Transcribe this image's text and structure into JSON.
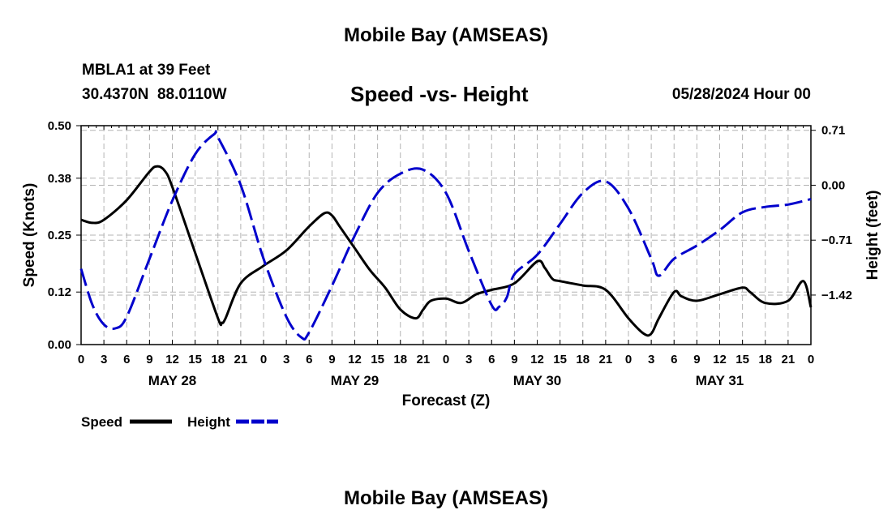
{
  "header": {
    "title": "Mobile Bay (AMSEAS)",
    "station": "MBLA1 at 39 Feet",
    "coords": "30.4370N  88.0110W",
    "subtitle": "Speed -vs- Height",
    "datetime": "05/28/2024 Hour 00"
  },
  "footer": {
    "title": "Mobile Bay (AMSEAS)"
  },
  "legend": {
    "speed": "Speed",
    "height": "Height"
  },
  "chart_data": {
    "type": "line",
    "xlabel": "Forecast (Z)",
    "ylabel": "Speed (Knots)",
    "y2label": "Height (feet)",
    "xlim": [
      0,
      96
    ],
    "ylim": [
      0,
      0.5
    ],
    "y2lim": [
      -2.06,
      0.77
    ],
    "yticks": [
      0.0,
      0.12,
      0.25,
      0.38,
      0.5
    ],
    "ytick_labels": [
      "0.00",
      "0.12",
      "0.25",
      "0.38",
      "0.50"
    ],
    "y2ticks": [
      0.71,
      0.0,
      -0.71,
      -1.42
    ],
    "y2tick_labels": [
      "0.71",
      "0.00",
      "−0.71",
      "−1.42"
    ],
    "xticks": [
      0,
      3,
      6,
      9,
      12,
      15,
      18,
      21,
      24,
      27,
      30,
      33,
      36,
      39,
      42,
      45,
      48,
      51,
      54,
      57,
      60,
      63,
      66,
      69,
      72,
      75,
      78,
      81,
      84,
      87,
      90,
      93,
      96
    ],
    "xtick_labels": [
      "0",
      "3",
      "6",
      "9",
      "12",
      "15",
      "18",
      "21",
      "0",
      "3",
      "6",
      "9",
      "12",
      "15",
      "18",
      "21",
      "0",
      "3",
      "6",
      "9",
      "12",
      "15",
      "18",
      "21",
      "0",
      "3",
      "6",
      "9",
      "12",
      "15",
      "18",
      "21",
      "0"
    ],
    "day_labels": [
      {
        "x": 12,
        "label": "MAY 28"
      },
      {
        "x": 36,
        "label": "MAY 29"
      },
      {
        "x": 60,
        "label": "MAY 30"
      },
      {
        "x": 84,
        "label": "MAY 31"
      }
    ],
    "grid": true,
    "series": [
      {
        "name": "Speed",
        "axis": "left",
        "color": "#000000",
        "dash": "solid",
        "x": [
          0,
          1.5,
          3,
          6,
          9,
          10,
          11,
          12,
          15,
          18,
          18.5,
          19,
          21,
          24,
          27,
          30,
          32,
          33,
          34,
          36,
          38,
          40,
          42,
          44,
          45,
          46,
          48,
          50,
          52,
          54,
          57,
          60,
          61,
          62,
          63,
          66,
          69,
          72,
          74,
          75,
          76,
          78,
          79,
          81,
          84,
          87,
          88,
          90,
          93,
          95,
          96
        ],
        "y": [
          0.285,
          0.278,
          0.285,
          0.33,
          0.395,
          0.407,
          0.397,
          0.36,
          0.21,
          0.06,
          0.05,
          0.06,
          0.14,
          0.18,
          0.215,
          0.27,
          0.3,
          0.295,
          0.27,
          0.22,
          0.17,
          0.13,
          0.08,
          0.06,
          0.08,
          0.1,
          0.105,
          0.095,
          0.115,
          0.125,
          0.14,
          0.19,
          0.175,
          0.15,
          0.145,
          0.135,
          0.125,
          0.06,
          0.025,
          0.025,
          0.06,
          0.12,
          0.11,
          0.1,
          0.115,
          0.13,
          0.12,
          0.095,
          0.1,
          0.145,
          0.085
        ]
      },
      {
        "name": "Height",
        "axis": "right",
        "color": "#0000cc",
        "dash": "dashed",
        "x": [
          0,
          1.5,
          3,
          4.5,
          6,
          9,
          12,
          15,
          17.5,
          18,
          21,
          24,
          27,
          29,
          30,
          33,
          36,
          39,
          42,
          45,
          48,
          51,
          54,
          55,
          56,
          57,
          60,
          63,
          66,
          69,
          72,
          75,
          76,
          78,
          81,
          84,
          87,
          90,
          93,
          96
        ],
        "y": [
          -1.08,
          -1.55,
          -1.8,
          -1.85,
          -1.7,
          -0.95,
          -0.2,
          0.4,
          0.66,
          0.62,
          0.0,
          -0.95,
          -1.7,
          -1.97,
          -1.9,
          -1.3,
          -0.65,
          -0.1,
          0.15,
          0.2,
          -0.1,
          -0.85,
          -1.55,
          -1.57,
          -1.45,
          -1.15,
          -0.9,
          -0.5,
          -0.1,
          0.05,
          -0.3,
          -0.95,
          -1.17,
          -0.95,
          -0.78,
          -0.58,
          -0.35,
          -0.28,
          -0.25,
          -0.18
        ]
      }
    ]
  }
}
